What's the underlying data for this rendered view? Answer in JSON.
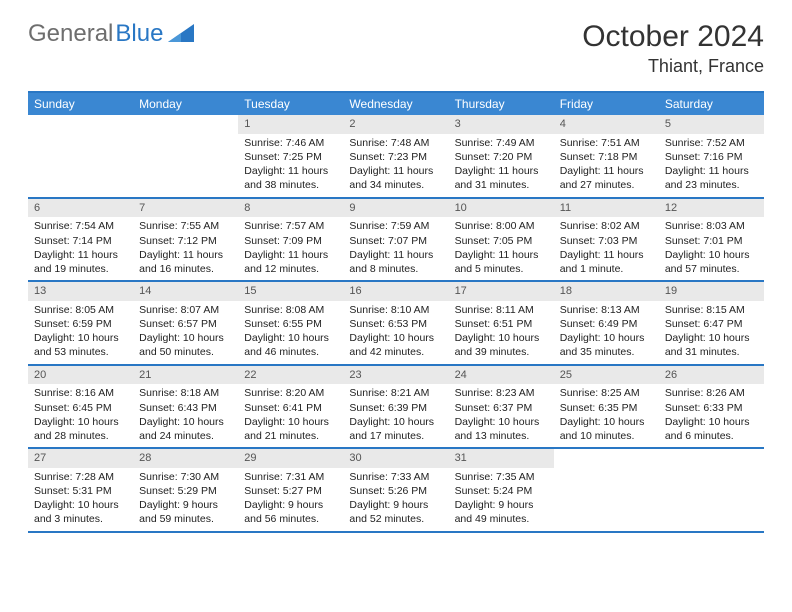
{
  "logo": {
    "text1": "General",
    "text2": "Blue"
  },
  "header": {
    "month": "October 2024",
    "location": "Thiant, France"
  },
  "colors": {
    "accent": "#2977c4",
    "header_bg": "#3a87d2",
    "daynum_bg": "#e9e9e9"
  },
  "day_names": [
    "Sunday",
    "Monday",
    "Tuesday",
    "Wednesday",
    "Thursday",
    "Friday",
    "Saturday"
  ],
  "weeks": [
    [
      null,
      null,
      {
        "n": "1",
        "sr": "7:46 AM",
        "ss": "7:25 PM",
        "dl": "11 hours and 38 minutes."
      },
      {
        "n": "2",
        "sr": "7:48 AM",
        "ss": "7:23 PM",
        "dl": "11 hours and 34 minutes."
      },
      {
        "n": "3",
        "sr": "7:49 AM",
        "ss": "7:20 PM",
        "dl": "11 hours and 31 minutes."
      },
      {
        "n": "4",
        "sr": "7:51 AM",
        "ss": "7:18 PM",
        "dl": "11 hours and 27 minutes."
      },
      {
        "n": "5",
        "sr": "7:52 AM",
        "ss": "7:16 PM",
        "dl": "11 hours and 23 minutes."
      }
    ],
    [
      {
        "n": "6",
        "sr": "7:54 AM",
        "ss": "7:14 PM",
        "dl": "11 hours and 19 minutes."
      },
      {
        "n": "7",
        "sr": "7:55 AM",
        "ss": "7:12 PM",
        "dl": "11 hours and 16 minutes."
      },
      {
        "n": "8",
        "sr": "7:57 AM",
        "ss": "7:09 PM",
        "dl": "11 hours and 12 minutes."
      },
      {
        "n": "9",
        "sr": "7:59 AM",
        "ss": "7:07 PM",
        "dl": "11 hours and 8 minutes."
      },
      {
        "n": "10",
        "sr": "8:00 AM",
        "ss": "7:05 PM",
        "dl": "11 hours and 5 minutes."
      },
      {
        "n": "11",
        "sr": "8:02 AM",
        "ss": "7:03 PM",
        "dl": "11 hours and 1 minute."
      },
      {
        "n": "12",
        "sr": "8:03 AM",
        "ss": "7:01 PM",
        "dl": "10 hours and 57 minutes."
      }
    ],
    [
      {
        "n": "13",
        "sr": "8:05 AM",
        "ss": "6:59 PM",
        "dl": "10 hours and 53 minutes."
      },
      {
        "n": "14",
        "sr": "8:07 AM",
        "ss": "6:57 PM",
        "dl": "10 hours and 50 minutes."
      },
      {
        "n": "15",
        "sr": "8:08 AM",
        "ss": "6:55 PM",
        "dl": "10 hours and 46 minutes."
      },
      {
        "n": "16",
        "sr": "8:10 AM",
        "ss": "6:53 PM",
        "dl": "10 hours and 42 minutes."
      },
      {
        "n": "17",
        "sr": "8:11 AM",
        "ss": "6:51 PM",
        "dl": "10 hours and 39 minutes."
      },
      {
        "n": "18",
        "sr": "8:13 AM",
        "ss": "6:49 PM",
        "dl": "10 hours and 35 minutes."
      },
      {
        "n": "19",
        "sr": "8:15 AM",
        "ss": "6:47 PM",
        "dl": "10 hours and 31 minutes."
      }
    ],
    [
      {
        "n": "20",
        "sr": "8:16 AM",
        "ss": "6:45 PM",
        "dl": "10 hours and 28 minutes."
      },
      {
        "n": "21",
        "sr": "8:18 AM",
        "ss": "6:43 PM",
        "dl": "10 hours and 24 minutes."
      },
      {
        "n": "22",
        "sr": "8:20 AM",
        "ss": "6:41 PM",
        "dl": "10 hours and 21 minutes."
      },
      {
        "n": "23",
        "sr": "8:21 AM",
        "ss": "6:39 PM",
        "dl": "10 hours and 17 minutes."
      },
      {
        "n": "24",
        "sr": "8:23 AM",
        "ss": "6:37 PM",
        "dl": "10 hours and 13 minutes."
      },
      {
        "n": "25",
        "sr": "8:25 AM",
        "ss": "6:35 PM",
        "dl": "10 hours and 10 minutes."
      },
      {
        "n": "26",
        "sr": "8:26 AM",
        "ss": "6:33 PM",
        "dl": "10 hours and 6 minutes."
      }
    ],
    [
      {
        "n": "27",
        "sr": "7:28 AM",
        "ss": "5:31 PM",
        "dl": "10 hours and 3 minutes."
      },
      {
        "n": "28",
        "sr": "7:30 AM",
        "ss": "5:29 PM",
        "dl": "9 hours and 59 minutes."
      },
      {
        "n": "29",
        "sr": "7:31 AM",
        "ss": "5:27 PM",
        "dl": "9 hours and 56 minutes."
      },
      {
        "n": "30",
        "sr": "7:33 AM",
        "ss": "5:26 PM",
        "dl": "9 hours and 52 minutes."
      },
      {
        "n": "31",
        "sr": "7:35 AM",
        "ss": "5:24 PM",
        "dl": "9 hours and 49 minutes."
      },
      null,
      null
    ]
  ],
  "labels": {
    "sunrise": "Sunrise: ",
    "sunset": "Sunset: ",
    "daylight": "Daylight: "
  }
}
